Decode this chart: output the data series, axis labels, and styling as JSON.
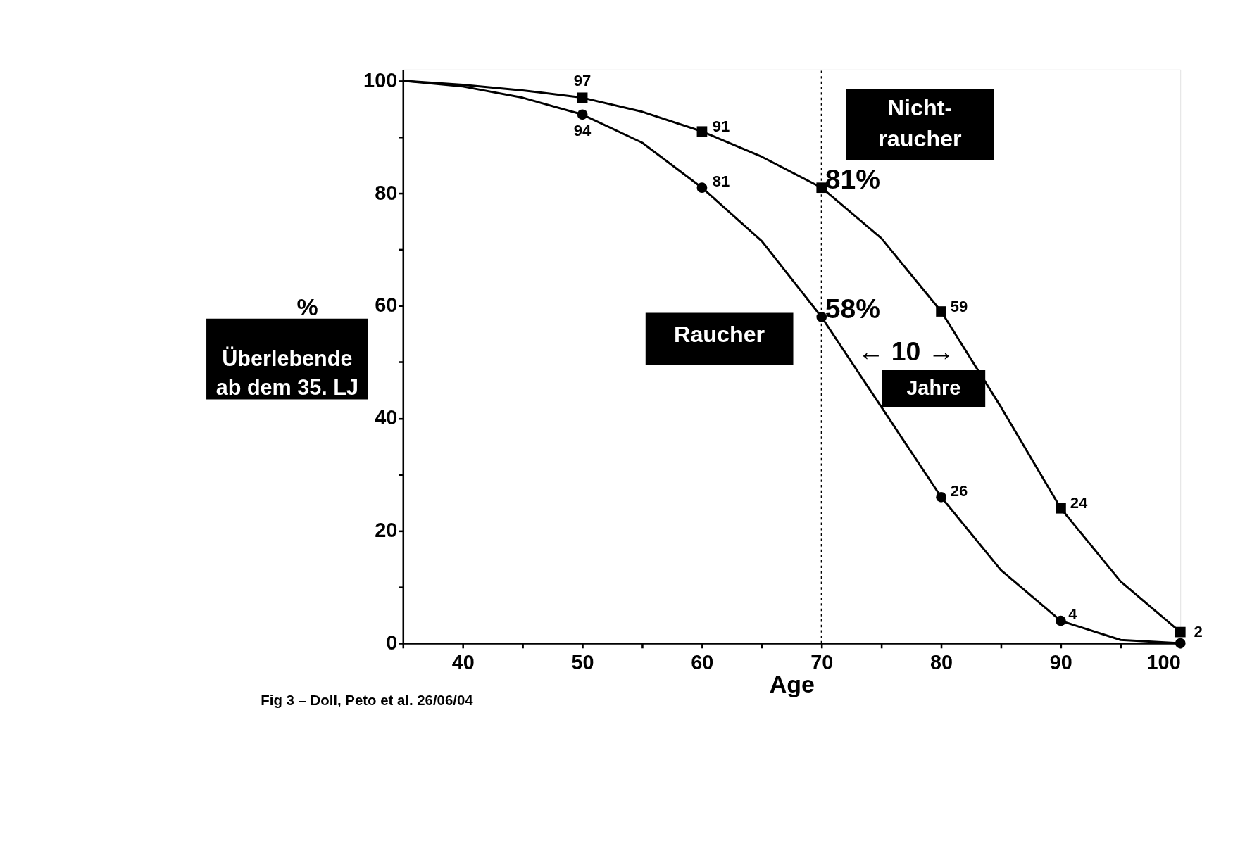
{
  "chart_data": {
    "type": "line",
    "xlabel": "Age",
    "ylabel": "%",
    "xlim": [
      35,
      100
    ],
    "ylim": [
      0,
      102
    ],
    "xticks": [
      {
        "value": 35,
        "label": null
      },
      40,
      {
        "value": 45,
        "label": null
      },
      50,
      {
        "value": 55,
        "label": null
      },
      60,
      {
        "value": 65,
        "label": null
      },
      70,
      {
        "value": 75,
        "label": null
      },
      80,
      {
        "value": 85,
        "label": null
      },
      90,
      {
        "value": 95,
        "label": null
      },
      100
    ],
    "yticks": [
      0,
      {
        "value": 10,
        "label": null
      },
      20,
      {
        "value": 30,
        "label": null
      },
      40,
      {
        "value": 50,
        "label": null
      },
      60,
      {
        "value": 70,
        "label": null
      },
      80,
      {
        "value": 90,
        "label": null
      },
      100
    ],
    "grid": false,
    "legend": false,
    "line_style": "solid",
    "marker": "none",
    "series": [
      {
        "name": "Nicht-\nraucher",
        "type": "line",
        "color": "#000000",
        "x": [
          35,
          40,
          45,
          50,
          55,
          60,
          65,
          70,
          75,
          80,
          85,
          90,
          95,
          100
        ],
        "values": [
          100,
          99.3,
          98.3,
          97,
          94.5,
          91,
          86.5,
          81,
          72,
          59,
          42,
          24,
          11,
          2
        ]
      },
      {
        "name": "Raucher",
        "type": "line",
        "color": "#000000",
        "x": [
          35,
          40,
          45,
          50,
          55,
          60,
          65,
          70,
          75,
          80,
          85,
          90,
          95,
          100
        ],
        "values": [
          100,
          99,
          97,
          94,
          89,
          81,
          71.5,
          58,
          42,
          26,
          13,
          4,
          0.6,
          0
        ]
      },
      {
        "type": "scatter",
        "marker": "square",
        "color": "#000000",
        "x": [
          50,
          60,
          70,
          80,
          90,
          100
        ],
        "values": [
          97,
          91,
          81,
          59,
          24,
          2
        ],
        "value_labels": [
          "97",
          "91",
          "81%",
          "59",
          "24",
          "2"
        ]
      },
      {
        "type": "scatter",
        "marker": "circle",
        "color": "#000000",
        "x": [
          50,
          60,
          70,
          80,
          90,
          100
        ],
        "values": [
          94,
          81,
          58,
          26,
          4,
          0
        ],
        "value_labels": [
          "94",
          "81",
          "58%",
          "26",
          "4",
          null
        ]
      }
    ],
    "ref_lines": [
      {
        "axis": "x",
        "value": 70,
        "color": "#000000",
        "line_style": "dotted"
      }
    ],
    "annotations": [
      "Überlebende\nab dem 35. LJ",
      "← 10 →",
      "Jahre",
      "Fig 3 – Doll, Peto et al. 26/06/04"
    ]
  }
}
